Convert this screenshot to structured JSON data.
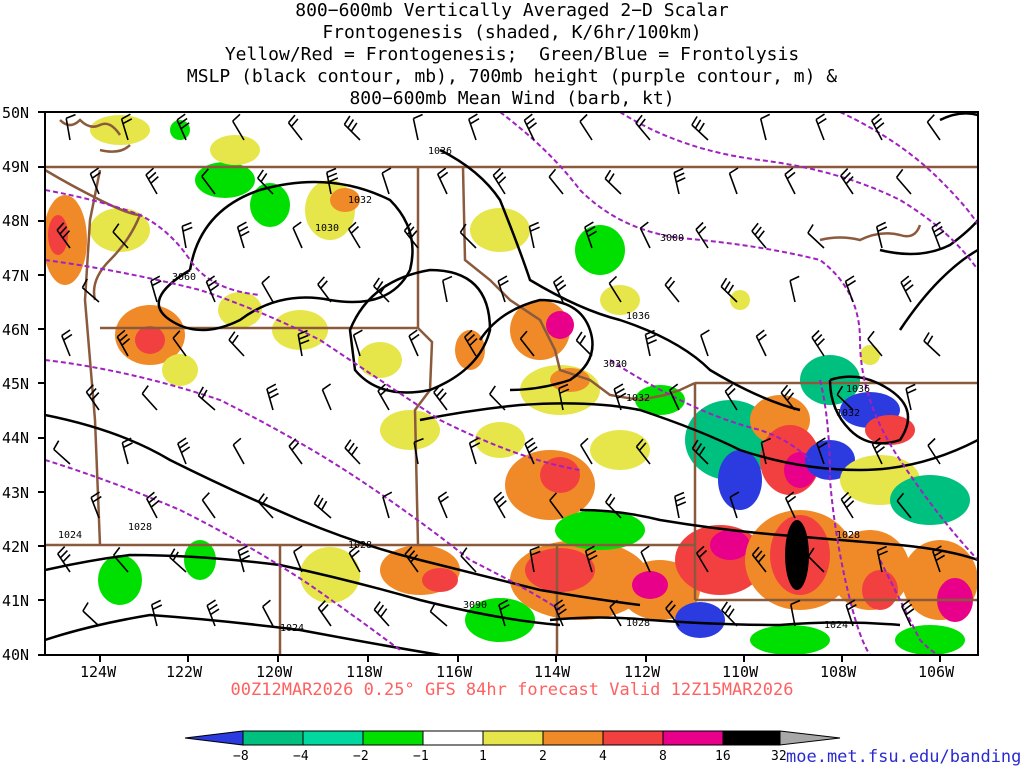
{
  "title": {
    "lines": [
      "800−600mb Vertically Averaged 2−D Scalar",
      "Frontogenesis (shaded, K/6hr/100km)",
      "Yellow/Red = Frontogenesis;  Green/Blue = Frontolysis",
      "MSLP (black contour, mb), 700mb height (purple contour, m) &",
      "800−600mb Mean Wind (barb, kt)"
    ]
  },
  "axes": {
    "lat_labels": [
      "50N",
      "49N",
      "48N",
      "47N",
      "46N",
      "45N",
      "44N",
      "43N",
      "42N",
      "41N",
      "40N"
    ],
    "lon_labels": [
      "124W",
      "122W",
      "120W",
      "118W",
      "116W",
      "114W",
      "112W",
      "110W",
      "108W",
      "106W"
    ]
  },
  "contour_labels": {
    "mslp": [
      "1036",
      "1032",
      "1030",
      "1036",
      "1032",
      "1032",
      "1028",
      "1028",
      "1024",
      "1028",
      "1024",
      "1036",
      "1032",
      "1028",
      "1024"
    ],
    "height": [
      "3060",
      "3000",
      "3030",
      "3090"
    ]
  },
  "footer": {
    "forecast_line": "00Z12MAR2026 0.25° GFS 84hr forecast Valid 12Z15MAR2026",
    "credit": "moe.met.fsu.edu/banding"
  },
  "colorbar": {
    "labels": [
      "−8",
      "−4",
      "−2",
      "−1",
      "1",
      "2",
      "4",
      "8",
      "16",
      "32"
    ],
    "colors": [
      "#2b3be0",
      "#00c080",
      "#00d8a0",
      "#00e000",
      "#ffffff",
      "#e6e64a",
      "#f08a28",
      "#f24040",
      "#e8008a",
      "#000000",
      "#a8a8a8"
    ]
  },
  "colors": {
    "border": "#8b5a3c",
    "mslp": "#000000",
    "height": "#a020c0",
    "barb": "#000000"
  }
}
